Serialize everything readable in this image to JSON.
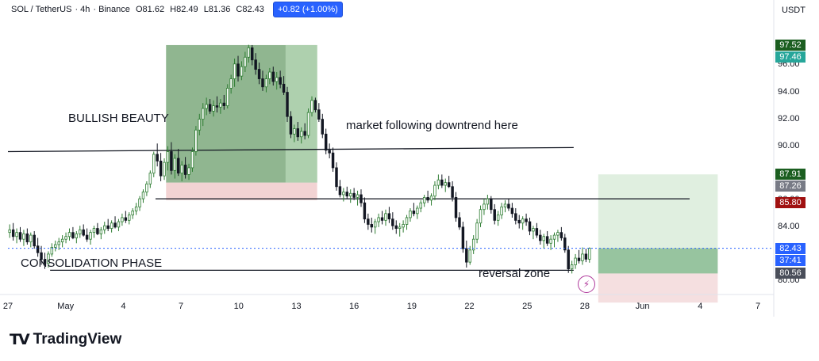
{
  "header": {
    "pair": "SOL / TetherUS",
    "interval": "4h",
    "exchange": "Binance",
    "open": "O81.62",
    "high": "H82.49",
    "low": "L81.36",
    "close": "C82.43",
    "change_callout": "+0.82 (+1.00%)"
  },
  "currency": "USDT",
  "brand": "TradingView",
  "annotations": {
    "bullish": "BULLISH BEAUTY",
    "downtrend": "market following downtrend here",
    "consolidation": "CONSOLIDATION PHASE",
    "reversal": "reversal zone"
  },
  "price_badges": [
    {
      "label": "97.52",
      "value": 97.52,
      "color": "#1b5e20"
    },
    {
      "label": "97.46",
      "value": 97.46,
      "color": "#26a69a"
    },
    {
      "label": "87.91",
      "value": 87.91,
      "color": "#1b5e20"
    },
    {
      "label": "87.26",
      "value": 87.26,
      "color": "#787b86"
    },
    {
      "label": "85.80",
      "value": 85.8,
      "color": "#a01010"
    },
    {
      "label": "82.43",
      "value": 82.43,
      "color": "#2962ff"
    },
    {
      "label": "37:41",
      "value": 81.65,
      "color": "#2962ff"
    },
    {
      "label": "80.56",
      "value": 80.56,
      "color": "#4a4e5a"
    }
  ],
  "chart_data": {
    "type": "candlestick",
    "y_ticks": [
      80,
      84,
      86,
      88,
      90,
      92,
      94,
      96
    ],
    "y_tick_labels": [
      "80.00",
      "84.00",
      "86.00",
      "88.00",
      "90.00",
      "92.00",
      "94.00",
      "96.00"
    ],
    "ylim": [
      79.0,
      99.2
    ],
    "x_ticks": [
      "27",
      "May",
      "4",
      "7",
      "10",
      "13",
      "16",
      "19",
      "22",
      "25",
      "28",
      "Jun",
      "4",
      "7"
    ],
    "trend_lines": [
      {
        "name": "upper-line",
        "from": [
          0,
          89.6
        ],
        "to": [
          161,
          89.9
        ]
      },
      {
        "name": "middle-line",
        "from": [
          42,
          86.1
        ],
        "to": [
          194,
          86.1
        ]
      },
      {
        "name": "lower-line",
        "from": [
          12,
          80.8
        ],
        "to": [
          161,
          80.8
        ]
      }
    ],
    "zones": [
      {
        "name": "bullish-profit-zone",
        "x0": 45,
        "x1": 88,
        "y0": 87.3,
        "y1": 97.5,
        "color": "#6b9e6b"
      },
      {
        "name": "bullish-profit-zone-light",
        "x0": 79,
        "x1": 88,
        "y0": 87.3,
        "y1": 97.5,
        "color": "#b8d8b8"
      },
      {
        "name": "bullish-stop-zone",
        "x0": 45,
        "x1": 88,
        "y0": 86.0,
        "y1": 87.3,
        "color": "#eec4c4"
      },
      {
        "name": "reversal-target-zone",
        "x0": 168,
        "x1": 202,
        "y0": 80.56,
        "y1": 87.91,
        "color": "#d6ead6"
      },
      {
        "name": "reversal-entry-zone",
        "x0": 168,
        "x1": 202,
        "y0": 80.56,
        "y1": 82.43,
        "color": "#7fb58a"
      },
      {
        "name": "reversal-stop-zone",
        "x0": 168,
        "x1": 202,
        "y0": 78.4,
        "y1": 80.56,
        "color": "#f2d4d6"
      }
    ],
    "candles": [
      [
        83.6,
        84.2,
        83.2,
        83.8
      ],
      [
        83.8,
        84.3,
        83.0,
        83.3
      ],
      [
        83.3,
        83.9,
        82.8,
        83.6
      ],
      [
        83.6,
        84.0,
        82.9,
        83.1
      ],
      [
        83.1,
        83.8,
        82.6,
        83.5
      ],
      [
        83.5,
        83.9,
        82.7,
        82.9
      ],
      [
        82.9,
        83.6,
        82.5,
        83.4
      ],
      [
        83.4,
        83.7,
        82.4,
        82.6
      ],
      [
        82.6,
        83.2,
        81.8,
        82.1
      ],
      [
        82.1,
        82.6,
        81.2,
        81.6
      ],
      [
        81.6,
        82.1,
        80.9,
        81.3
      ],
      [
        81.3,
        82.2,
        81.0,
        82.0
      ],
      [
        82.0,
        82.8,
        81.8,
        82.5
      ],
      [
        82.5,
        83.0,
        82.2,
        82.7
      ],
      [
        82.7,
        83.2,
        82.3,
        82.9
      ],
      [
        82.9,
        83.4,
        82.5,
        83.1
      ],
      [
        83.1,
        83.6,
        82.8,
        83.3
      ],
      [
        83.3,
        83.9,
        83.0,
        83.6
      ],
      [
        83.6,
        84.0,
        83.1,
        83.2
      ],
      [
        83.2,
        83.7,
        82.8,
        83.5
      ],
      [
        83.5,
        84.1,
        83.2,
        83.8
      ],
      [
        83.8,
        84.2,
        83.3,
        83.4
      ],
      [
        83.4,
        83.9,
        82.9,
        83.1
      ],
      [
        83.1,
        83.8,
        82.7,
        83.6
      ],
      [
        83.6,
        84.1,
        83.2,
        83.9
      ],
      [
        83.9,
        84.3,
        83.4,
        83.5
      ],
      [
        83.5,
        84.0,
        83.1,
        83.8
      ],
      [
        83.8,
        84.4,
        83.5,
        84.1
      ],
      [
        84.1,
        84.6,
        83.7,
        83.9
      ],
      [
        83.9,
        84.5,
        83.6,
        84.3
      ],
      [
        84.3,
        84.8,
        83.9,
        84.0
      ],
      [
        84.0,
        84.6,
        83.7,
        84.4
      ],
      [
        84.4,
        85.0,
        84.1,
        84.7
      ],
      [
        84.7,
        85.2,
        84.3,
        84.5
      ],
      [
        84.5,
        85.1,
        84.2,
        84.9
      ],
      [
        84.9,
        85.4,
        84.6,
        85.2
      ],
      [
        85.2,
        85.8,
        84.9,
        85.5
      ],
      [
        85.5,
        86.3,
        85.2,
        86.1
      ],
      [
        86.1,
        86.8,
        85.8,
        86.6
      ],
      [
        86.6,
        87.4,
        86.3,
        87.2
      ],
      [
        87.2,
        88.2,
        86.9,
        88.0
      ],
      [
        88.0,
        89.6,
        87.7,
        89.4
      ],
      [
        89.4,
        90.2,
        88.5,
        88.9
      ],
      [
        88.9,
        89.5,
        87.4,
        87.8
      ],
      [
        87.8,
        89.1,
        87.5,
        88.8
      ],
      [
        88.8,
        90.0,
        88.2,
        89.6
      ],
      [
        89.6,
        90.3,
        87.9,
        88.2
      ],
      [
        88.2,
        89.4,
        87.6,
        89.1
      ],
      [
        89.1,
        89.8,
        87.8,
        88.0
      ],
      [
        88.0,
        88.9,
        87.4,
        88.6
      ],
      [
        88.6,
        89.2,
        87.6,
        87.9
      ],
      [
        87.9,
        88.7,
        87.5,
        88.4
      ],
      [
        88.4,
        89.9,
        88.1,
        89.6
      ],
      [
        89.6,
        91.5,
        89.3,
        91.2
      ],
      [
        91.2,
        92.4,
        90.8,
        92.0
      ],
      [
        92.0,
        93.2,
        91.5,
        92.8
      ],
      [
        92.8,
        93.6,
        92.3,
        93.1
      ],
      [
        93.1,
        93.5,
        92.4,
        92.6
      ],
      [
        92.6,
        93.4,
        92.2,
        93.0
      ],
      [
        93.0,
        93.7,
        92.5,
        92.9
      ],
      [
        92.9,
        93.5,
        92.4,
        93.2
      ],
      [
        93.2,
        93.8,
        92.7,
        93.0
      ],
      [
        93.0,
        94.6,
        92.8,
        94.3
      ],
      [
        94.3,
        95.3,
        93.9,
        95.0
      ],
      [
        95.0,
        96.5,
        94.4,
        96.1
      ],
      [
        96.1,
        96.7,
        94.8,
        95.2
      ],
      [
        95.2,
        96.3,
        94.9,
        95.9
      ],
      [
        95.9,
        97.0,
        95.5,
        96.6
      ],
      [
        96.6,
        97.52,
        96.2,
        97.3
      ],
      [
        97.3,
        97.5,
        96.0,
        96.4
      ],
      [
        96.4,
        96.9,
        95.3,
        95.7
      ],
      [
        95.7,
        96.2,
        94.6,
        95.0
      ],
      [
        95.0,
        95.6,
        94.1,
        94.4
      ],
      [
        94.4,
        95.3,
        94.0,
        95.0
      ],
      [
        95.0,
        95.8,
        94.6,
        95.5
      ],
      [
        95.5,
        95.9,
        94.5,
        94.8
      ],
      [
        94.8,
        95.5,
        94.2,
        95.1
      ],
      [
        95.1,
        95.6,
        94.3,
        94.6
      ],
      [
        94.6,
        95.2,
        93.8,
        94.0
      ],
      [
        94.0,
        94.4,
        91.8,
        92.2
      ],
      [
        92.2,
        92.6,
        90.6,
        90.9
      ],
      [
        90.9,
        91.6,
        90.3,
        91.3
      ],
      [
        91.3,
        91.8,
        90.4,
        90.7
      ],
      [
        90.7,
        91.4,
        90.2,
        91.1
      ],
      [
        91.1,
        91.7,
        90.5,
        90.8
      ],
      [
        90.8,
        92.8,
        90.6,
        92.5
      ],
      [
        92.5,
        93.7,
        92.2,
        93.4
      ],
      [
        93.4,
        93.6,
        92.5,
        92.7
      ],
      [
        92.7,
        93.2,
        91.8,
        92.0
      ],
      [
        92.0,
        92.4,
        90.6,
        90.9
      ],
      [
        90.9,
        91.3,
        89.4,
        89.7
      ],
      [
        89.7,
        90.2,
        89.1,
        89.5
      ],
      [
        89.5,
        89.9,
        88.1,
        88.4
      ],
      [
        88.4,
        88.8,
        86.7,
        87.0
      ],
      [
        87.0,
        87.5,
        86.2,
        86.4
      ],
      [
        86.4,
        86.9,
        85.9,
        86.6
      ],
      [
        86.6,
        87.0,
        86.1,
        86.3
      ],
      [
        86.3,
        86.8,
        85.8,
        86.5
      ],
      [
        86.5,
        86.9,
        86.0,
        86.2
      ],
      [
        86.2,
        86.7,
        85.6,
        86.4
      ],
      [
        86.4,
        86.8,
        85.5,
        85.8
      ],
      [
        85.8,
        86.2,
        84.3,
        84.6
      ],
      [
        84.6,
        85.0,
        83.8,
        84.2
      ],
      [
        84.2,
        84.7,
        83.6,
        84.0
      ],
      [
        84.0,
        84.6,
        83.5,
        84.4
      ],
      [
        84.4,
        85.0,
        84.0,
        84.7
      ],
      [
        84.7,
        85.2,
        84.2,
        84.5
      ],
      [
        84.5,
        85.3,
        84.1,
        85.0
      ],
      [
        85.0,
        85.5,
        84.3,
        84.6
      ],
      [
        84.6,
        85.1,
        83.8,
        84.1
      ],
      [
        84.1,
        84.5,
        83.5,
        83.9
      ],
      [
        83.9,
        84.3,
        83.3,
        84.0
      ],
      [
        84.0,
        84.5,
        83.6,
        84.2
      ],
      [
        84.2,
        84.9,
        83.8,
        84.7
      ],
      [
        84.7,
        85.4,
        84.4,
        85.2
      ],
      [
        85.2,
        85.8,
        84.8,
        85.0
      ],
      [
        85.0,
        85.6,
        84.6,
        85.4
      ],
      [
        85.4,
        86.0,
        85.1,
        85.8
      ],
      [
        85.8,
        86.4,
        85.5,
        86.2
      ],
      [
        86.2,
        86.7,
        85.8,
        86.0
      ],
      [
        86.0,
        86.5,
        85.6,
        86.3
      ],
      [
        86.3,
        87.4,
        86.0,
        87.1
      ],
      [
        87.1,
        87.9,
        86.8,
        87.5
      ],
      [
        87.5,
        87.9,
        86.9,
        87.1
      ],
      [
        87.1,
        87.6,
        86.6,
        87.3
      ],
      [
        87.3,
        87.8,
        86.9,
        87.0
      ],
      [
        87.0,
        87.4,
        85.9,
        86.2
      ],
      [
        86.2,
        86.6,
        84.4,
        84.7
      ],
      [
        84.7,
        85.1,
        83.8,
        84.0
      ],
      [
        84.0,
        84.4,
        82.1,
        82.4
      ],
      [
        82.4,
        83.0,
        81.0,
        81.4
      ],
      [
        81.4,
        82.6,
        81.2,
        82.3
      ],
      [
        82.3,
        83.4,
        82.0,
        83.1
      ],
      [
        83.1,
        84.6,
        82.8,
        84.3
      ],
      [
        84.3,
        85.6,
        84.0,
        85.3
      ],
      [
        85.3,
        86.1,
        84.9,
        85.7
      ],
      [
        85.7,
        86.4,
        85.3,
        86.1
      ],
      [
        86.1,
        86.3,
        85.0,
        85.3
      ],
      [
        85.3,
        85.7,
        84.2,
        84.5
      ],
      [
        84.5,
        85.2,
        84.1,
        84.9
      ],
      [
        84.9,
        85.8,
        84.6,
        85.5
      ],
      [
        85.5,
        86.0,
        85.1,
        85.7
      ],
      [
        85.7,
        86.1,
        85.2,
        85.4
      ],
      [
        85.4,
        85.8,
        84.7,
        85.0
      ],
      [
        85.0,
        85.4,
        84.2,
        84.5
      ],
      [
        84.5,
        84.9,
        83.9,
        84.3
      ],
      [
        84.3,
        84.8,
        83.8,
        84.6
      ],
      [
        84.6,
        85.0,
        84.1,
        84.4
      ],
      [
        84.4,
        84.7,
        83.4,
        83.7
      ],
      [
        83.7,
        84.1,
        83.1,
        83.9
      ],
      [
        83.9,
        84.3,
        83.2,
        83.4
      ],
      [
        83.4,
        83.8,
        82.7,
        83.0
      ],
      [
        83.0,
        83.5,
        82.4,
        83.3
      ],
      [
        83.3,
        83.7,
        82.6,
        82.8
      ],
      [
        82.8,
        83.4,
        82.3,
        83.1
      ],
      [
        83.1,
        83.6,
        82.5,
        83.4
      ],
      [
        83.4,
        83.8,
        82.9,
        83.6
      ],
      [
        83.6,
        84.0,
        83.0,
        83.2
      ],
      [
        83.2,
        83.5,
        82.1,
        82.3
      ],
      [
        82.3,
        82.6,
        80.6,
        80.9
      ],
      [
        80.9,
        81.5,
        80.56,
        81.2
      ],
      [
        81.2,
        82.0,
        80.9,
        81.7
      ],
      [
        81.7,
        82.3,
        81.3,
        81.5
      ],
      [
        81.5,
        82.49,
        81.2,
        82.0
      ],
      [
        82.0,
        82.4,
        81.4,
        81.62
      ],
      [
        81.62,
        82.49,
        81.36,
        82.43
      ]
    ]
  }
}
